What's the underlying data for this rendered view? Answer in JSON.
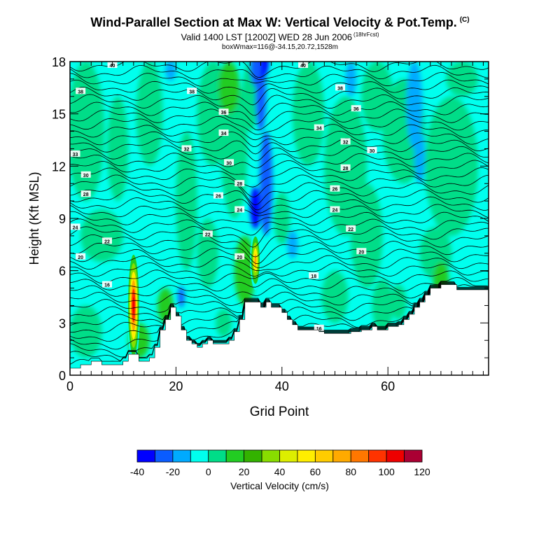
{
  "title": {
    "main": "Wind-Parallel Section at Max W: Vertical Velocity & Pot.Temp.",
    "main_units": "(C)",
    "valid": "Valid 1400 LST [1200Z] WED 28 Jun 2006",
    "valid_note": "(18hrFcst)",
    "box": "boxWmax=116@-34.15,20.72,1528m"
  },
  "chart_data": {
    "type": "heatmap",
    "title": "Wind-Parallel Section at Max W: Vertical Velocity & Pot.Temp.",
    "xlabel": "Grid Point",
    "ylabel": "Height (Kft MSL)",
    "xlim": [
      0,
      79
    ],
    "ylim": [
      0,
      18
    ],
    "x_ticks": [
      0,
      20,
      40,
      60
    ],
    "y_ticks": [
      0,
      3,
      6,
      9,
      12,
      15,
      18
    ],
    "colorbar": {
      "label": "Vertical Velocity (cm/s)",
      "tick_labels": [
        "-40",
        "-20",
        "0",
        "20",
        "40",
        "60",
        "80",
        "100",
        "120"
      ],
      "colors": [
        "#0000ff",
        "#0a5cff",
        "#00aaff",
        "#00ffee",
        "#00dd88",
        "#22cc22",
        "#33b200",
        "#88dd00",
        "#ddee00",
        "#ffee00",
        "#ffcc00",
        "#ffaa00",
        "#ff7700",
        "#ff3300",
        "#ee0000",
        "#aa0033"
      ]
    },
    "terrain": [
      [
        0,
        0.4
      ],
      [
        2,
        0.4
      ],
      [
        2,
        0.6
      ],
      [
        4,
        0.6
      ],
      [
        4,
        0.8
      ],
      [
        6,
        0.8
      ],
      [
        6,
        0.6
      ],
      [
        8,
        0.6
      ],
      [
        10,
        0.6
      ],
      [
        10,
        0.8
      ],
      [
        11,
        0.8
      ],
      [
        11,
        1.2
      ],
      [
        12,
        1.2
      ],
      [
        13,
        1.2
      ],
      [
        13,
        0.8
      ],
      [
        15,
        0.8
      ],
      [
        15,
        1.0
      ],
      [
        16,
        1.0
      ],
      [
        16,
        1.6
      ],
      [
        17,
        1.6
      ],
      [
        17,
        2.6
      ],
      [
        18,
        2.6
      ],
      [
        18,
        3.2
      ],
      [
        19,
        3.2
      ],
      [
        19,
        3.9
      ],
      [
        20,
        3.9
      ],
      [
        20,
        3.4
      ],
      [
        21,
        3.4
      ],
      [
        21,
        2.6
      ],
      [
        22,
        2.6
      ],
      [
        22,
        2.0
      ],
      [
        23,
        2.0
      ],
      [
        23,
        1.8
      ],
      [
        24,
        1.8
      ],
      [
        24,
        1.6
      ],
      [
        25,
        1.6
      ],
      [
        25,
        1.8
      ],
      [
        26,
        1.8
      ],
      [
        26,
        2.0
      ],
      [
        27,
        2.0
      ],
      [
        27,
        1.8
      ],
      [
        30,
        1.8
      ],
      [
        30,
        2.0
      ],
      [
        31,
        2.0
      ],
      [
        31,
        2.5
      ],
      [
        32,
        2.5
      ],
      [
        32,
        3.2
      ],
      [
        33,
        3.2
      ],
      [
        33,
        4.2
      ],
      [
        36,
        4.2
      ],
      [
        36,
        3.9
      ],
      [
        37,
        3.9
      ],
      [
        37,
        4.2
      ],
      [
        38,
        4.2
      ],
      [
        38,
        3.9
      ],
      [
        40,
        3.9
      ],
      [
        40,
        3.6
      ],
      [
        41,
        3.6
      ],
      [
        41,
        3.2
      ],
      [
        42,
        3.2
      ],
      [
        42,
        2.9
      ],
      [
        43,
        2.9
      ],
      [
        43,
        2.6
      ],
      [
        47,
        2.6
      ],
      [
        47,
        2.5
      ],
      [
        48,
        2.5
      ],
      [
        48,
        2.4
      ],
      [
        53,
        2.4
      ],
      [
        53,
        2.5
      ],
      [
        55,
        2.5
      ],
      [
        55,
        2.6
      ],
      [
        57,
        2.6
      ],
      [
        57,
        2.8
      ],
      [
        58,
        2.8
      ],
      [
        58,
        2.6
      ],
      [
        60,
        2.6
      ],
      [
        60,
        2.8
      ],
      [
        62,
        2.8
      ],
      [
        62,
        2.9
      ],
      [
        63,
        2.9
      ],
      [
        63,
        3.2
      ],
      [
        64,
        3.2
      ],
      [
        64,
        3.5
      ],
      [
        65,
        3.5
      ],
      [
        65,
        3.9
      ],
      [
        66,
        3.9
      ],
      [
        66,
        4.2
      ],
      [
        67,
        4.2
      ],
      [
        67,
        4.6
      ],
      [
        68,
        4.6
      ],
      [
        68,
        5.0
      ],
      [
        70,
        5.0
      ],
      [
        70,
        5.2
      ],
      [
        73,
        5.2
      ],
      [
        73,
        4.9
      ],
      [
        79,
        4.9
      ]
    ],
    "wmax_value": 116,
    "theta_contour_labels": [
      {
        "x": 8,
        "y": 17.8,
        "text": "40"
      },
      {
        "x": 44,
        "y": 17.8,
        "text": "40"
      },
      {
        "x": 2,
        "y": 16.3,
        "text": "38"
      },
      {
        "x": 23,
        "y": 16.3,
        "text": "38"
      },
      {
        "x": 51,
        "y": 16.5,
        "text": "38"
      },
      {
        "x": 54,
        "y": 15.3,
        "text": "36"
      },
      {
        "x": 29,
        "y": 15.1,
        "text": "36"
      },
      {
        "x": 47,
        "y": 14.2,
        "text": "34"
      },
      {
        "x": 29,
        "y": 13.9,
        "text": "34"
      },
      {
        "x": 1,
        "y": 12.7,
        "text": "33"
      },
      {
        "x": 22,
        "y": 13.0,
        "text": "32"
      },
      {
        "x": 52,
        "y": 13.4,
        "text": "32"
      },
      {
        "x": 57,
        "y": 12.9,
        "text": "30"
      },
      {
        "x": 30,
        "y": 12.2,
        "text": "30"
      },
      {
        "x": 3,
        "y": 11.5,
        "text": "30"
      },
      {
        "x": 52,
        "y": 11.9,
        "text": "28"
      },
      {
        "x": 32,
        "y": 11.0,
        "text": "28"
      },
      {
        "x": 50,
        "y": 10.7,
        "text": "26"
      },
      {
        "x": 28,
        "y": 10.3,
        "text": "26"
      },
      {
        "x": 3,
        "y": 10.4,
        "text": "28"
      },
      {
        "x": 50,
        "y": 9.5,
        "text": "24"
      },
      {
        "x": 32,
        "y": 9.5,
        "text": "24"
      },
      {
        "x": 1,
        "y": 8.5,
        "text": "24"
      },
      {
        "x": 53,
        "y": 8.4,
        "text": "22"
      },
      {
        "x": 26,
        "y": 8.1,
        "text": "22"
      },
      {
        "x": 7,
        "y": 7.7,
        "text": "22"
      },
      {
        "x": 55,
        "y": 7.1,
        "text": "20"
      },
      {
        "x": 32,
        "y": 6.8,
        "text": "20"
      },
      {
        "x": 2,
        "y": 6.8,
        "text": "20"
      },
      {
        "x": 46,
        "y": 5.7,
        "text": "18"
      },
      {
        "x": 7,
        "y": 5.2,
        "text": "16"
      },
      {
        "x": 47,
        "y": 2.7,
        "text": "16"
      }
    ]
  }
}
